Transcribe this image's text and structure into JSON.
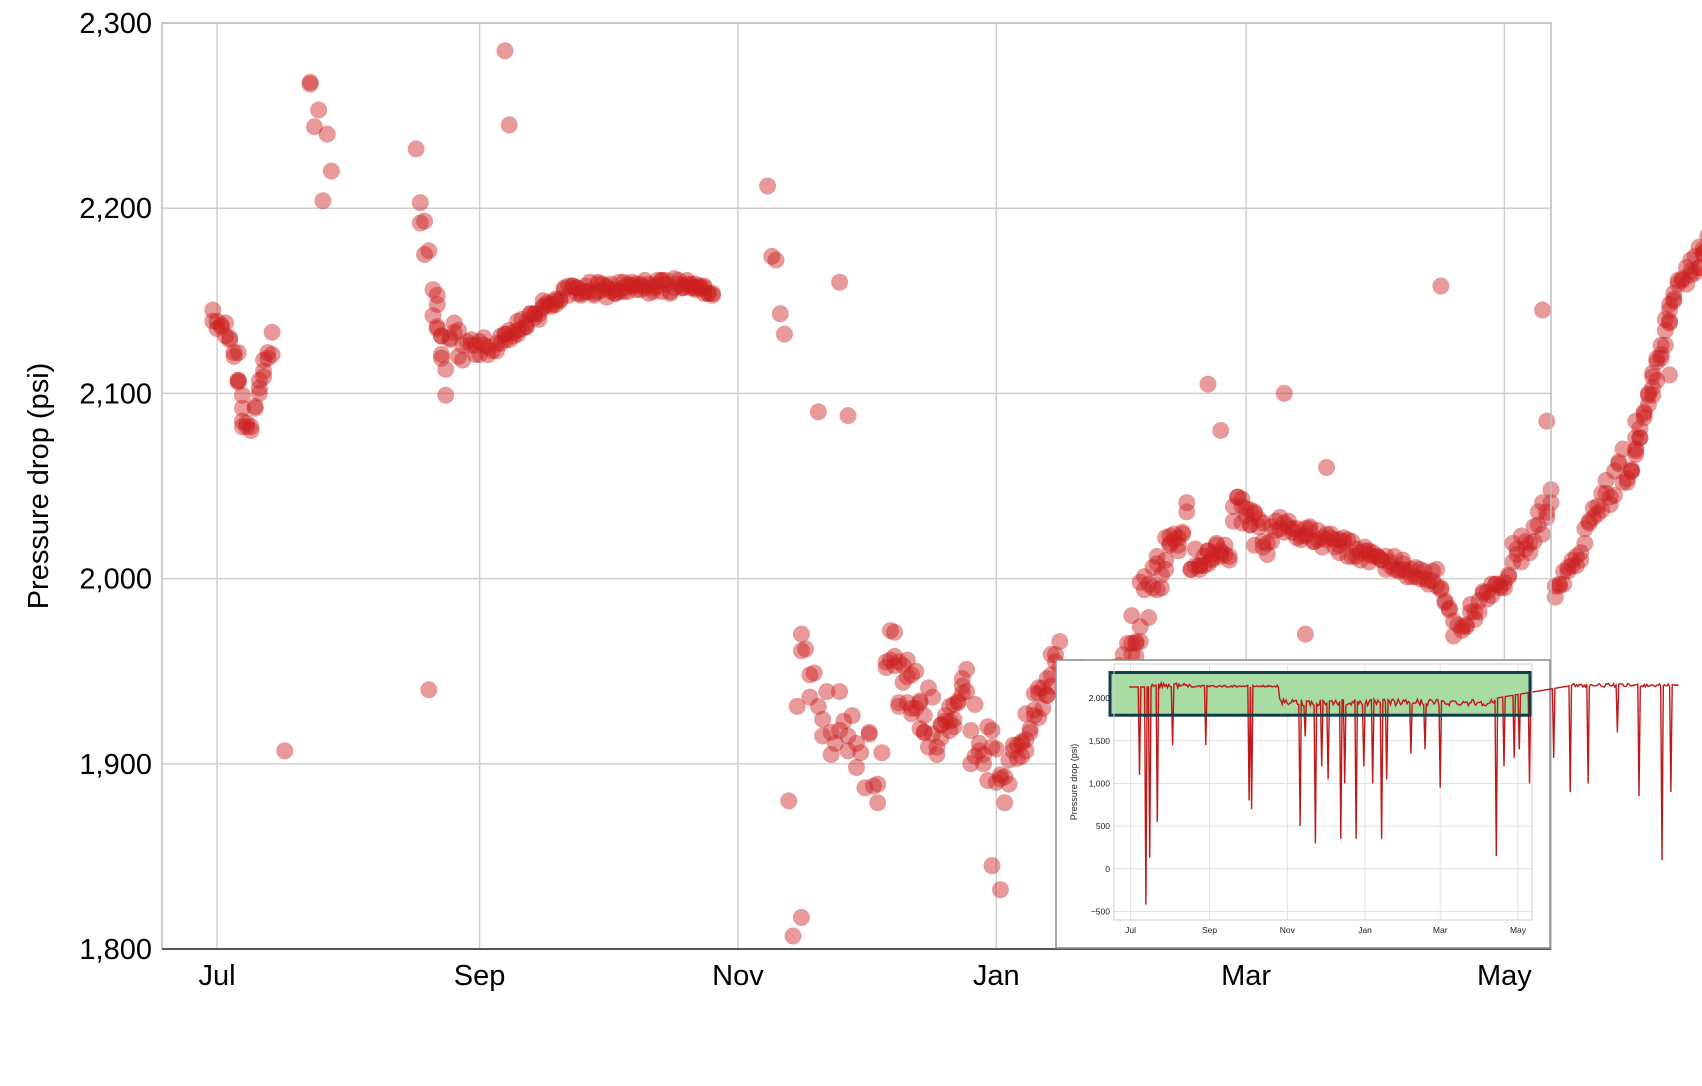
{
  "chart_data": [
    {
      "type": "scatter",
      "title": "",
      "xlabel": "",
      "ylabel": "Pressure drop (psi)",
      "ylim": [
        1800,
        2300
      ],
      "yticks": [
        "1,800",
        "1,900",
        "2,000",
        "2,100",
        "2,200",
        "2,300"
      ],
      "yticks_values": [
        1800,
        1900,
        2000,
        2100,
        2200,
        2300
      ],
      "xticks": [
        "Jul",
        "Sep",
        "Nov",
        "Jan",
        "Mar",
        "May"
      ],
      "xticks_values": [
        "2022-07-01",
        "2022-09-01",
        "2022-11-01",
        "2023-01-01",
        "2023-03-01",
        "2023-05-01"
      ],
      "xlim": [
        "2022-06-18",
        "2023-05-12"
      ],
      "grid": true,
      "marker_color": "#cc1f1f",
      "points": []
    },
    {
      "type": "line",
      "title": "",
      "xlabel": "",
      "ylabel": "Pressure drop (psi)",
      "ylim": [
        -600,
        2400
      ],
      "yticks": [
        "−500",
        "0",
        "500",
        "1,000",
        "1,500",
        "2,000"
      ],
      "yticks_values": [
        -500,
        0,
        500,
        1000,
        1500,
        2000
      ],
      "xticks": [
        "Jul",
        "Sep",
        "Nov",
        "Jan",
        "Mar",
        "May"
      ],
      "xticks_values": [
        "2022-07-01",
        "2022-09-01",
        "2022-11-01",
        "2023-01-01",
        "2023-03-01",
        "2023-05-01"
      ],
      "xlim": [
        "2022-06-18",
        "2023-05-12"
      ],
      "grid": true,
      "line_color": "#c01818",
      "highlight": {
        "y_from": 1800,
        "y_to": 2300,
        "fill": "#9fd89a",
        "border": "#143c46"
      },
      "x": [],
      "y": []
    }
  ]
}
